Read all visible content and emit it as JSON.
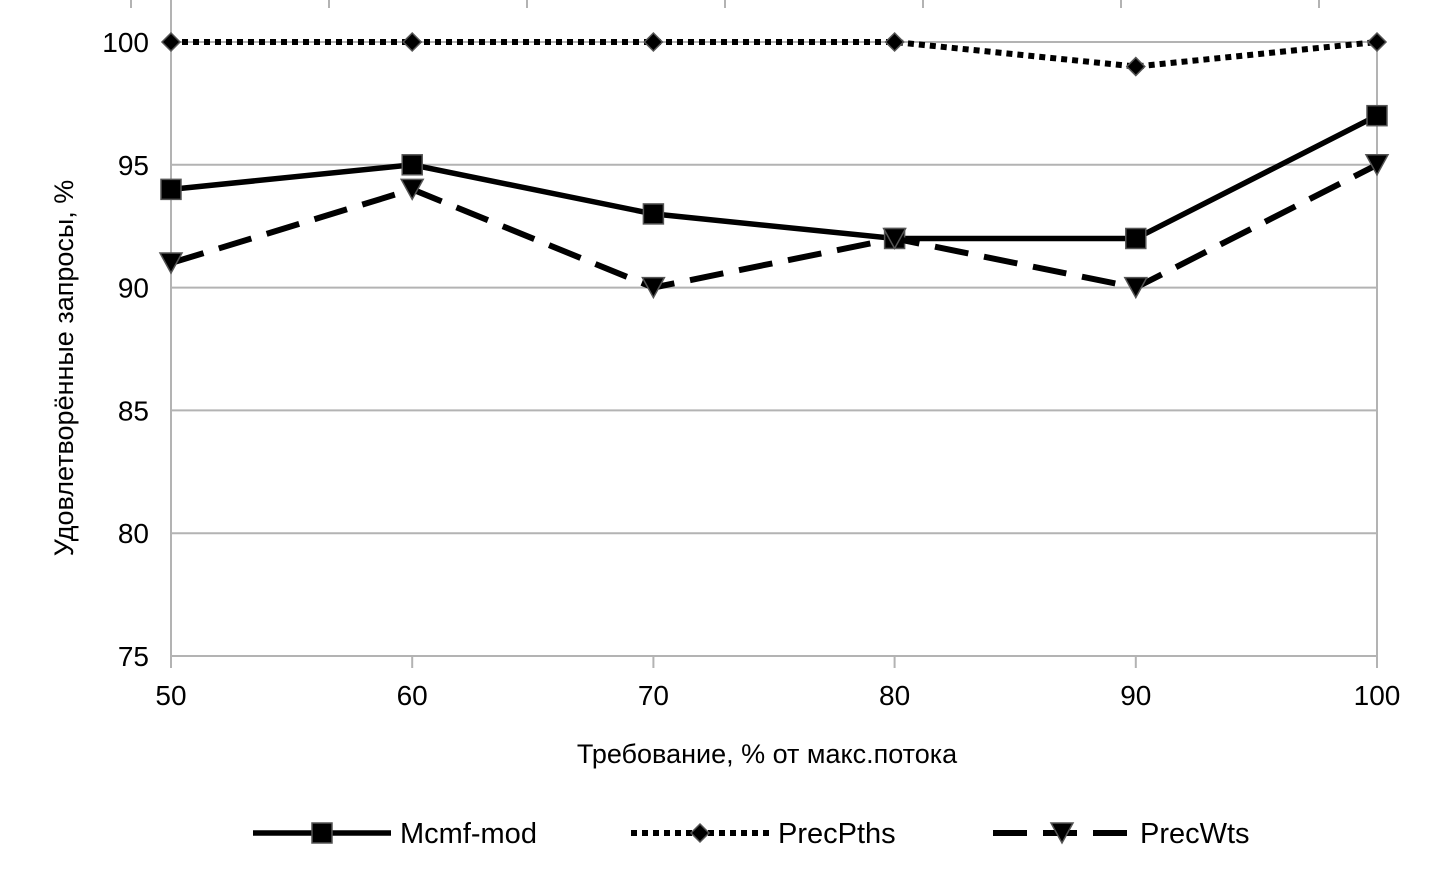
{
  "chart_data": {
    "type": "line",
    "title": "",
    "xlabel": "Требование, % от макс.потока",
    "ylabel": "Удовлетворённые запросы, %",
    "x": [
      50,
      60,
      70,
      80,
      90,
      100
    ],
    "xticks": [
      "50",
      "60",
      "70",
      "80",
      "90",
      "100"
    ],
    "ylim": [
      75,
      100
    ],
    "yticks": [
      "75",
      "80",
      "85",
      "90",
      "95",
      "100"
    ],
    "grid": true,
    "legend_position": "bottom",
    "series": [
      {
        "name": "Mcmf-mod",
        "values": [
          94,
          95,
          93,
          92,
          92,
          97
        ],
        "style": "solid",
        "marker": "square"
      },
      {
        "name": "PrecPths",
        "values": [
          100,
          100,
          100,
          100,
          99,
          100
        ],
        "style": "dotted",
        "marker": "diamond"
      },
      {
        "name": "PrecWts",
        "values": [
          91,
          94,
          90,
          92,
          90,
          95
        ],
        "style": "dashed",
        "marker": "triangle-down"
      }
    ]
  },
  "colors": {
    "line": "#000000",
    "grid": "#b3b3b3",
    "background": "#ffffff"
  }
}
